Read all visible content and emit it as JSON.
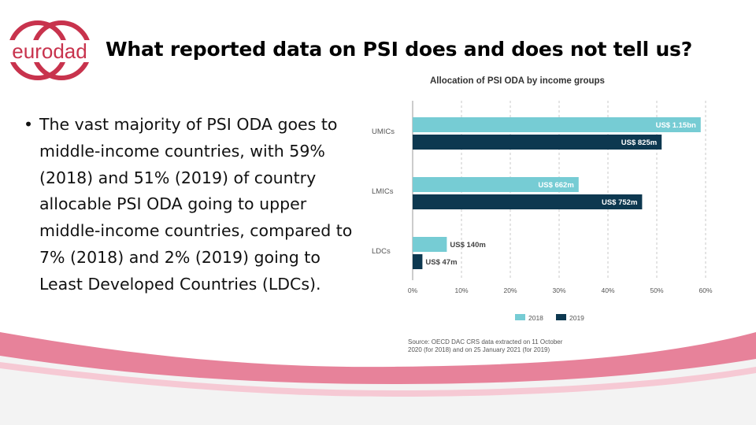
{
  "slide": {
    "logo_text": "eurodad",
    "title": "What reported data on PSI does and does not tell us?",
    "bullet_text": "The vast majority of PSI ODA goes to middle-income countries, with 59% (2018) and 51% (2019) of country allocable PSI ODA going to upper middle-income countries, compared to 7% (2018) and 2% (2019) going to Least Developed Countries (LDCs)."
  },
  "colors": {
    "brand": "#c8334d",
    "band_pink": "#e7829a",
    "series_2018": "#76ccd4",
    "series_2019": "#0d3850"
  },
  "chart_data": {
    "type": "bar",
    "orientation": "horizontal",
    "title": "Allocation of PSI ODA by income groups",
    "categories": [
      "UMICs",
      "LMICs",
      "LDCs"
    ],
    "series": [
      {
        "name": "2018",
        "values": [
          59,
          34,
          7
        ],
        "labels": [
          "US$ 1.15bn",
          "US$ 662m",
          "US$ 140m"
        ]
      },
      {
        "name": "2019",
        "values": [
          51,
          47,
          2
        ],
        "labels": [
          "US$ 825m",
          "US$ 752m",
          "US$ 47m"
        ]
      }
    ],
    "xlim": [
      0,
      60
    ],
    "ticks": [
      "0%",
      "10%",
      "20%",
      "30%",
      "40%",
      "50%",
      "60%"
    ],
    "grid": "vertical dashed",
    "legend": "bottom",
    "source": "Source: OECD DAC CRS data extracted on 11 October 2020 (for 2018) and on 25 January 2021 (for 2019)"
  }
}
